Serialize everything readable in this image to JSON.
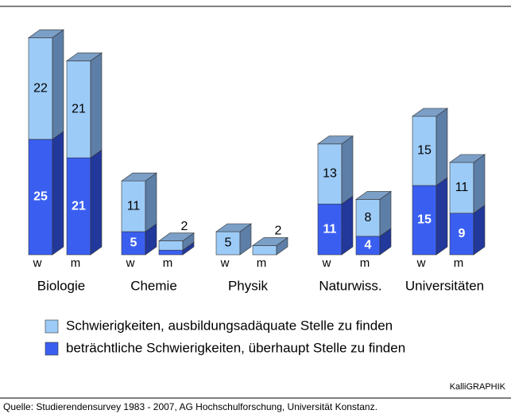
{
  "chart_data": {
    "type": "bar3d_stacked",
    "groups": [
      "Biologie",
      "Chemie",
      "Physik",
      "Naturwiss.",
      "Universitäten"
    ],
    "categories": [
      "w",
      "m",
      "w",
      "m",
      "w",
      "m",
      "w",
      "m",
      "w",
      "m"
    ],
    "series": [
      {
        "name": "beträchtliche Schwierigkeiten, überhaupt Stelle zu finden",
        "color": "#3a5ff0",
        "values": [
          25,
          21,
          5,
          1,
          0,
          0,
          11,
          4,
          15,
          9
        ],
        "value_labels": [
          "25",
          "21",
          "5",
          null,
          null,
          null,
          "11",
          "4",
          "15",
          "9"
        ]
      },
      {
        "name": "Schwierigkeiten, ausbildungsadäquate Stelle zu finden",
        "color": "#9dcbf7",
        "values": [
          22,
          21,
          11,
          2,
          5,
          2,
          13,
          8,
          15,
          11
        ]
      }
    ],
    "credit": "KalliGRAPHIK",
    "source": "Quelle: Studierendensurvey 1983 - 2007, AG Hochschulforschung, Universität Konstanz."
  }
}
